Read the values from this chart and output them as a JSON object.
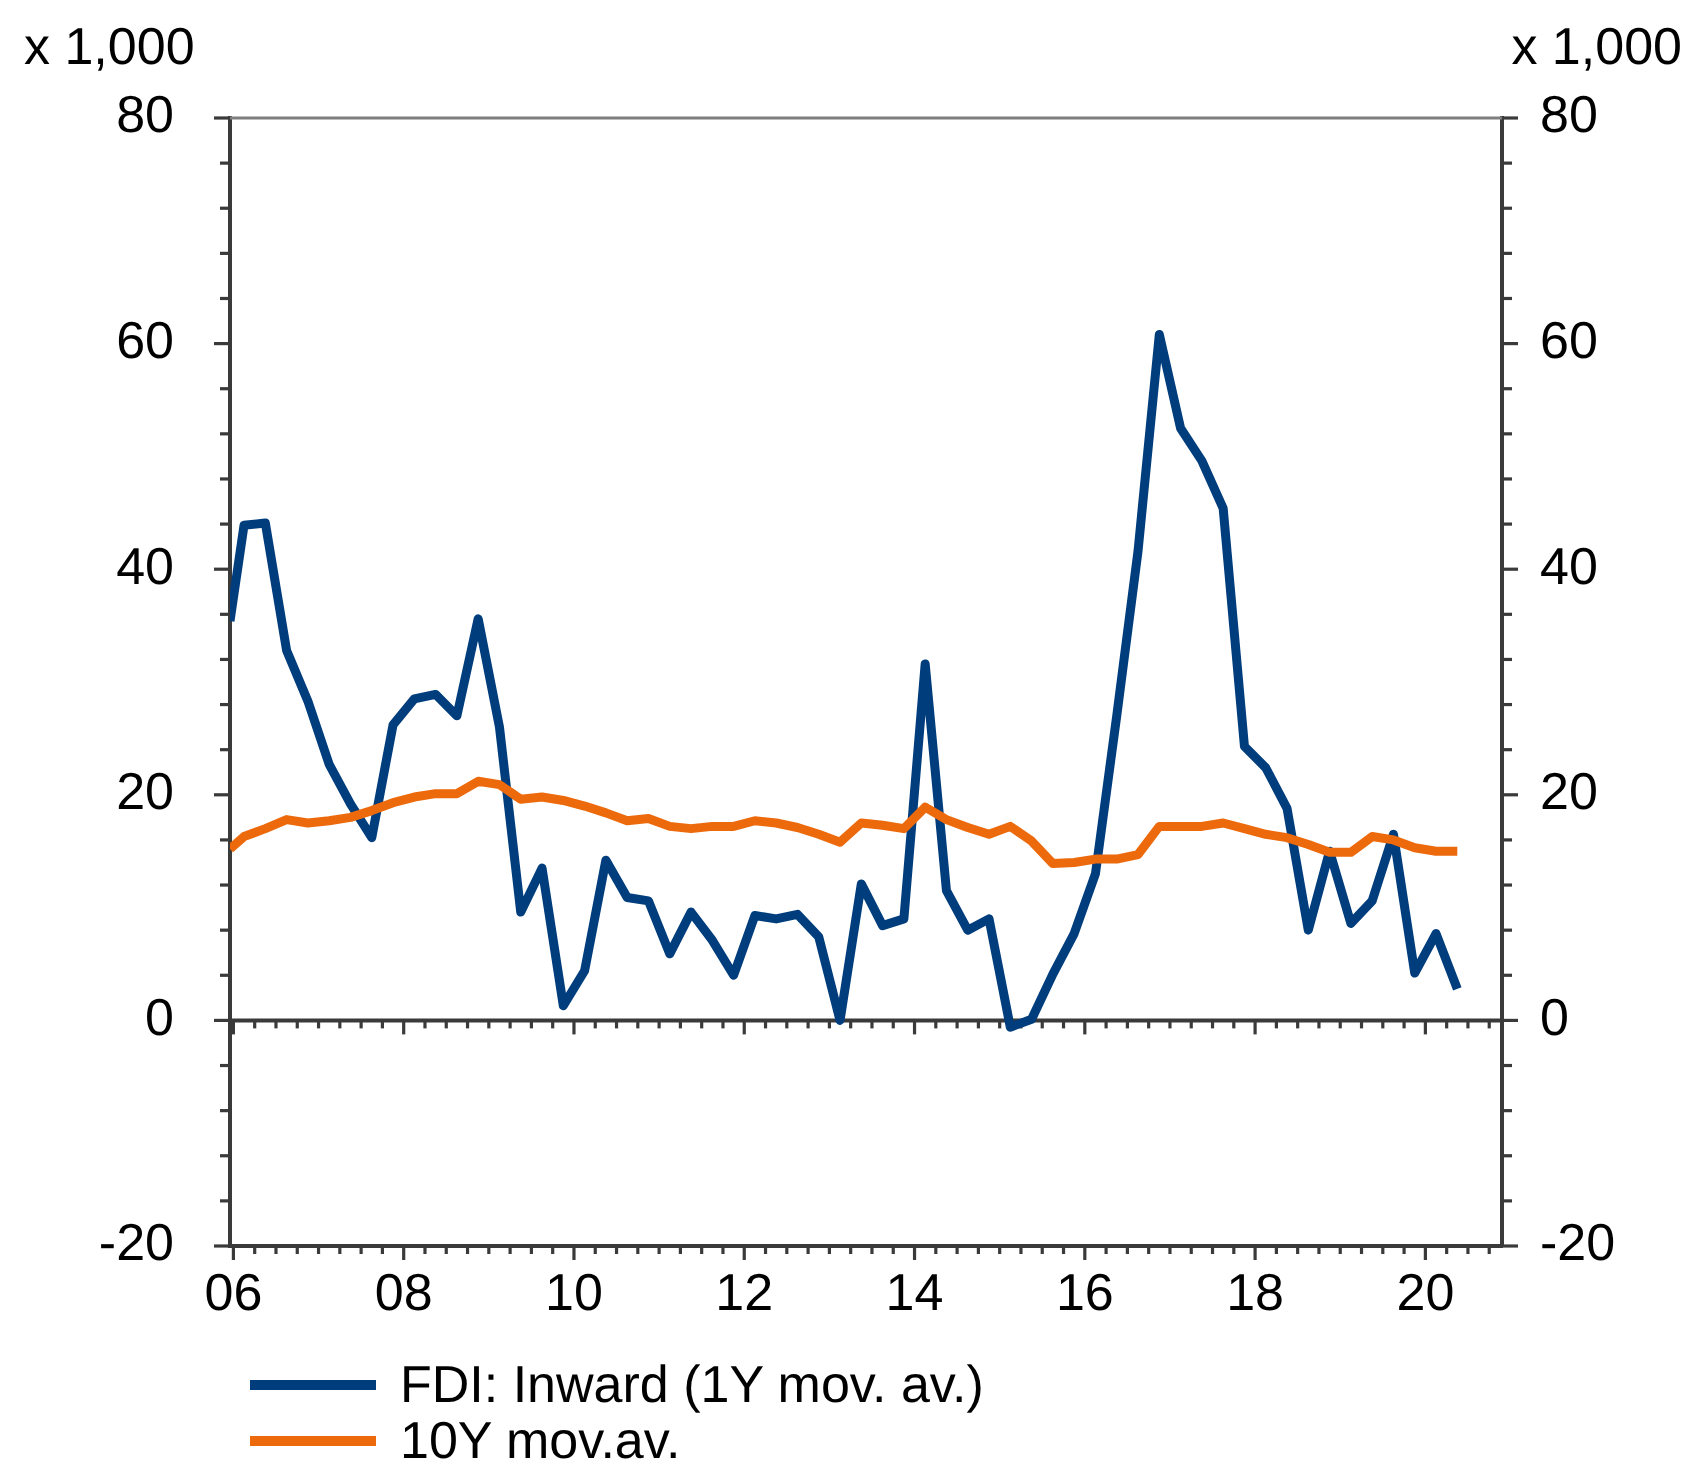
{
  "chart_data": {
    "type": "line",
    "ylabel": "x 1,000",
    "y2label": "x 1,000",
    "x": [
      2005.96,
      2006.125,
      2006.375,
      2006.625,
      2006.875,
      2007.125,
      2007.375,
      2007.625,
      2007.875,
      2008.125,
      2008.375,
      2008.625,
      2008.875,
      2009.125,
      2009.375,
      2009.625,
      2009.875,
      2010.125,
      2010.375,
      2010.625,
      2010.875,
      2011.125,
      2011.375,
      2011.625,
      2011.875,
      2012.125,
      2012.375,
      2012.625,
      2012.875,
      2013.125,
      2013.375,
      2013.625,
      2013.875,
      2014.125,
      2014.375,
      2014.625,
      2014.875,
      2015.125,
      2015.375,
      2015.625,
      2015.875,
      2016.125,
      2016.375,
      2016.625,
      2016.875,
      2017.125,
      2017.375,
      2017.625,
      2017.875,
      2018.125,
      2018.375,
      2018.625,
      2018.875,
      2019.125,
      2019.375,
      2019.625,
      2019.875,
      2020.125,
      2020.375
    ],
    "series": [
      {
        "name": "FDI: Inward (1Y mov. av.)",
        "color": "#003d7c",
        "values": [
          35.4,
          43.9,
          44.1,
          32.8,
          28.3,
          22.7,
          19.2,
          16.2,
          26.2,
          28.5,
          28.9,
          27.0,
          35.6,
          26.0,
          9.6,
          13.5,
          1.3,
          4.4,
          14.2,
          10.9,
          10.6,
          5.9,
          9.6,
          7.1,
          4.0,
          9.3,
          9.0,
          9.4,
          7.4,
          0.0,
          12.1,
          8.4,
          9.0,
          31.6,
          11.5,
          8.0,
          9.0,
          -0.6,
          0.1,
          4.1,
          7.7,
          13.0,
          27.0,
          41.6,
          60.8,
          52.5,
          49.6,
          45.4,
          24.3,
          22.4,
          18.8,
          8.0,
          15.0,
          8.6,
          10.6,
          16.5,
          4.2,
          7.7,
          2.8
        ]
      },
      {
        "name": "10Y mov.av.",
        "color": "#ec6a0c",
        "values": [
          15.2,
          16.3,
          17.0,
          17.8,
          17.5,
          17.7,
          18.0,
          18.6,
          19.3,
          19.8,
          20.1,
          20.1,
          21.2,
          20.9,
          19.6,
          19.8,
          19.5,
          19.0,
          18.4,
          17.7,
          17.9,
          17.2,
          17.0,
          17.2,
          17.2,
          17.7,
          17.5,
          17.1,
          16.5,
          15.8,
          17.5,
          17.3,
          17.0,
          18.9,
          17.8,
          17.1,
          16.5,
          17.2,
          15.9,
          13.9,
          14.0,
          14.3,
          14.3,
          14.7,
          17.2,
          17.2,
          17.2,
          17.5,
          17.0,
          16.5,
          16.2,
          15.6,
          14.9,
          14.9,
          16.3,
          16.0,
          15.3,
          15.0,
          15.0
        ]
      }
    ],
    "xlim": [
      2005.96,
      2020.9
    ],
    "xticks": [
      {
        "value": 2006,
        "label": "06"
      },
      {
        "value": 2006.25,
        "label": null
      },
      {
        "value": 2006.5,
        "label": null
      },
      {
        "value": 2006.75,
        "label": null
      },
      {
        "value": 2007,
        "label": null
      },
      {
        "value": 2007.25,
        "label": null
      },
      {
        "value": 2007.5,
        "label": null
      },
      {
        "value": 2007.75,
        "label": null
      },
      {
        "value": 2008,
        "label": "08"
      },
      {
        "value": 2008.25,
        "label": null
      },
      {
        "value": 2008.5,
        "label": null
      },
      {
        "value": 2008.75,
        "label": null
      },
      {
        "value": 2009,
        "label": null
      },
      {
        "value": 2009.25,
        "label": null
      },
      {
        "value": 2009.5,
        "label": null
      },
      {
        "value": 2009.75,
        "label": null
      },
      {
        "value": 2010,
        "label": "10"
      },
      {
        "value": 2010.25,
        "label": null
      },
      {
        "value": 2010.5,
        "label": null
      },
      {
        "value": 2010.75,
        "label": null
      },
      {
        "value": 2011,
        "label": null
      },
      {
        "value": 2011.25,
        "label": null
      },
      {
        "value": 2011.5,
        "label": null
      },
      {
        "value": 2011.75,
        "label": null
      },
      {
        "value": 2012,
        "label": "12"
      },
      {
        "value": 2012.25,
        "label": null
      },
      {
        "value": 2012.5,
        "label": null
      },
      {
        "value": 2012.75,
        "label": null
      },
      {
        "value": 2013,
        "label": null
      },
      {
        "value": 2013.25,
        "label": null
      },
      {
        "value": 2013.5,
        "label": null
      },
      {
        "value": 2013.75,
        "label": null
      },
      {
        "value": 2014,
        "label": "14"
      },
      {
        "value": 2014.25,
        "label": null
      },
      {
        "value": 2014.5,
        "label": null
      },
      {
        "value": 2014.75,
        "label": null
      },
      {
        "value": 2015,
        "label": null
      },
      {
        "value": 2015.25,
        "label": null
      },
      {
        "value": 2015.5,
        "label": null
      },
      {
        "value": 2015.75,
        "label": null
      },
      {
        "value": 2016,
        "label": "16"
      },
      {
        "value": 2016.25,
        "label": null
      },
      {
        "value": 2016.5,
        "label": null
      },
      {
        "value": 2016.75,
        "label": null
      },
      {
        "value": 2017,
        "label": null
      },
      {
        "value": 2017.25,
        "label": null
      },
      {
        "value": 2017.5,
        "label": null
      },
      {
        "value": 2017.75,
        "label": null
      },
      {
        "value": 2018,
        "label": "18"
      },
      {
        "value": 2018.25,
        "label": null
      },
      {
        "value": 2018.5,
        "label": null
      },
      {
        "value": 2018.75,
        "label": null
      },
      {
        "value": 2019,
        "label": null
      },
      {
        "value": 2019.25,
        "label": null
      },
      {
        "value": 2019.5,
        "label": null
      },
      {
        "value": 2019.75,
        "label": null
      },
      {
        "value": 2020,
        "label": "20"
      },
      {
        "value": 2020.25,
        "label": null
      },
      {
        "value": 2020.5,
        "label": null
      },
      {
        "value": 2020.75,
        "label": null
      }
    ],
    "ylim": [
      -20,
      80
    ],
    "yticks": [
      -20,
      {
        "value": -16,
        "label": null
      },
      {
        "value": -12,
        "label": null
      },
      {
        "value": -8,
        "label": null
      },
      {
        "value": -4,
        "label": null
      },
      0,
      {
        "value": 4,
        "label": null
      },
      {
        "value": 8,
        "label": null
      },
      {
        "value": 12,
        "label": null
      },
      {
        "value": 16,
        "label": null
      },
      20,
      {
        "value": 24,
        "label": null
      },
      {
        "value": 28,
        "label": null
      },
      {
        "value": 32,
        "label": null
      },
      {
        "value": 36,
        "label": null
      },
      40,
      {
        "value": 44,
        "label": null
      },
      {
        "value": 48,
        "label": null
      },
      {
        "value": 52,
        "label": null
      },
      {
        "value": 56,
        "label": null
      },
      60,
      {
        "value": 64,
        "label": null
      },
      {
        "value": 68,
        "label": null
      },
      {
        "value": 72,
        "label": null
      },
      {
        "value": 76,
        "label": null
      },
      80
    ],
    "y2lim": [
      -20,
      80
    ],
    "y2ticks": [
      -20,
      {
        "value": -16,
        "label": null
      },
      {
        "value": -12,
        "label": null
      },
      {
        "value": -8,
        "label": null
      },
      {
        "value": -4,
        "label": null
      },
      0,
      {
        "value": 4,
        "label": null
      },
      {
        "value": 8,
        "label": null
      },
      {
        "value": 12,
        "label": null
      },
      {
        "value": 16,
        "label": null
      },
      20,
      {
        "value": 24,
        "label": null
      },
      {
        "value": 28,
        "label": null
      },
      {
        "value": 32,
        "label": null
      },
      {
        "value": 36,
        "label": null
      },
      40,
      {
        "value": 44,
        "label": null
      },
      {
        "value": 48,
        "label": null
      },
      {
        "value": 52,
        "label": null
      },
      {
        "value": 56,
        "label": null
      },
      60,
      {
        "value": 64,
        "label": null
      },
      {
        "value": 68,
        "label": null
      },
      {
        "value": 72,
        "label": null
      },
      {
        "value": 76,
        "label": null
      },
      80
    ],
    "ref_lines": [
      {
        "axis": "y",
        "value": 0,
        "color": "#3a3a3a"
      }
    ],
    "legend": "bottom left"
  }
}
